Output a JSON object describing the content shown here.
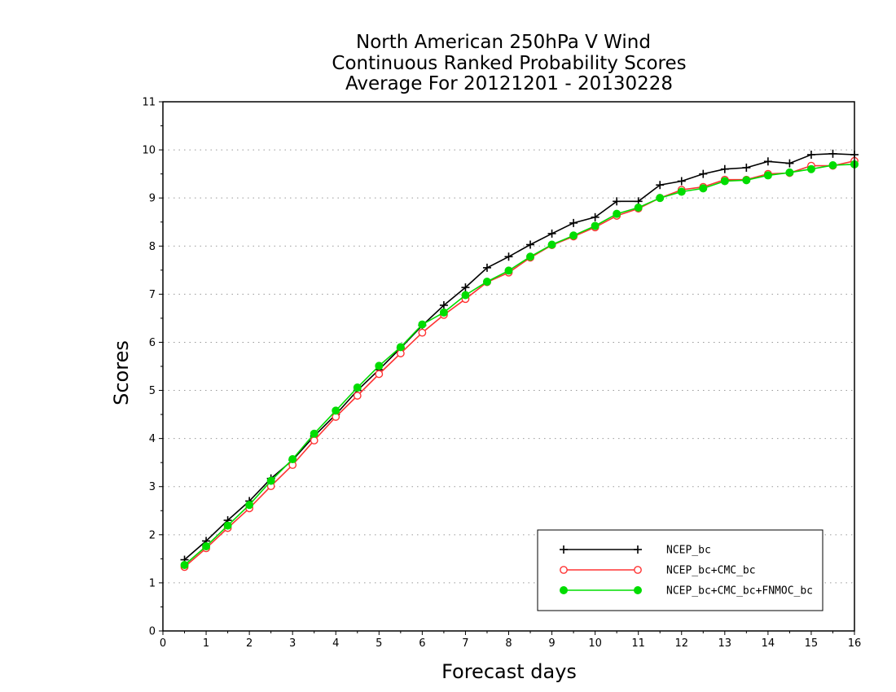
{
  "chart_data": {
    "type": "line",
    "title": [
      "North American 250hPa V Wind",
      "Continuous Ranked Probability Scores",
      "Average For 20121201 - 20130228"
    ],
    "xlabel": "Forecast days",
    "ylabel": "Scores",
    "xlim": [
      0,
      16
    ],
    "ylim": [
      0,
      11
    ],
    "xticks": [
      "0",
      "1",
      "2",
      "3",
      "4",
      "5",
      "6",
      "7",
      "8",
      "9",
      "10",
      "11",
      "12",
      "13",
      "14",
      "15",
      "16"
    ],
    "yticks": [
      "0",
      "1",
      "2",
      "3",
      "4",
      "5",
      "6",
      "7",
      "8",
      "9",
      "10",
      "11"
    ],
    "grid": "horizontal dotted",
    "legend_position": "bottom-right",
    "x": [
      0.5,
      1,
      1.5,
      2,
      2.5,
      3,
      3.5,
      4,
      4.5,
      5,
      5.5,
      6,
      6.5,
      7,
      7.5,
      8,
      8.5,
      9,
      9.5,
      10,
      10.5,
      11,
      11.5,
      12,
      12.5,
      13,
      13.5,
      14,
      14.5,
      15,
      15.5,
      16
    ],
    "series": [
      {
        "name": "NCEP_bc",
        "color": "#000000",
        "marker": "plus",
        "values": [
          1.48,
          1.87,
          2.3,
          2.7,
          3.17,
          3.55,
          4.05,
          4.5,
          5.0,
          5.43,
          5.88,
          6.35,
          6.77,
          7.14,
          7.55,
          7.78,
          8.03,
          8.26,
          8.48,
          8.6,
          8.93,
          8.93,
          9.27,
          9.35,
          9.5,
          9.6,
          9.63,
          9.76,
          9.72,
          9.9,
          9.92,
          9.9
        ]
      },
      {
        "name": "NCEP_bc+CMC_bc",
        "color": "#ff3333",
        "marker": "open-circle",
        "values": [
          1.33,
          1.72,
          2.14,
          2.55,
          3.01,
          3.45,
          3.96,
          4.45,
          4.89,
          5.34,
          5.77,
          6.2,
          6.57,
          6.9,
          7.25,
          7.45,
          7.76,
          8.02,
          8.2,
          8.39,
          8.63,
          8.78,
          9.0,
          9.17,
          9.23,
          9.38,
          9.38,
          9.5,
          9.52,
          9.67,
          9.67,
          9.77
        ]
      },
      {
        "name": "NCEP_bc+CMC_bc+FNMOC_bc",
        "color": "#00dd00",
        "marker": "filled-circle",
        "values": [
          1.37,
          1.76,
          2.19,
          2.62,
          3.12,
          3.57,
          4.1,
          4.58,
          5.06,
          5.51,
          5.9,
          6.37,
          6.62,
          6.98,
          7.26,
          7.49,
          7.78,
          8.03,
          8.22,
          8.42,
          8.67,
          8.8,
          9.0,
          9.13,
          9.2,
          9.35,
          9.37,
          9.47,
          9.53,
          9.6,
          9.68,
          9.7
        ]
      }
    ]
  }
}
